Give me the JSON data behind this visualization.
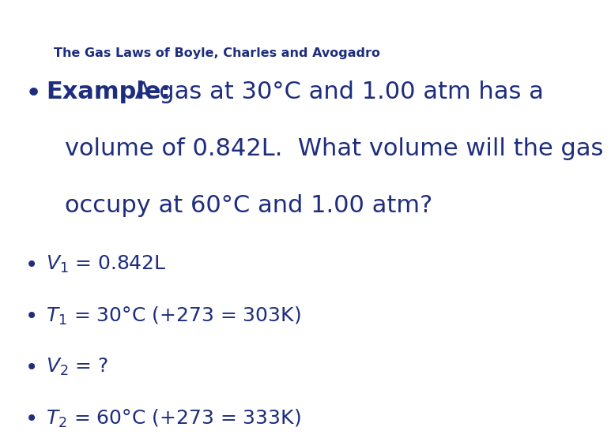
{
  "background_color": "#ffffff",
  "title": "The Gas Laws of Boyle, Charles and Avogadro",
  "title_color": "#1e2d7d",
  "title_fontsize": 11.5,
  "text_color": "#1e2d7d",
  "main_fontsize": 22,
  "small_fontsize": 11.5,
  "bullet_fontsize": 18,
  "example_line1": "Example:  A gas at 30°C and 1.00 atm has a",
  "example_line2": "volume of 0.842L.  What volume will the gas",
  "example_line3": "occupy at 60°C and 1.00 atm?",
  "bullet_lines_math": [
    "$V_1$ = 0.842L",
    "$T_1$ = 30°C (+273 = 303K)",
    "$V_2$ = ?",
    "$T_2$ = 60°C (+273 = 333K)"
  ]
}
